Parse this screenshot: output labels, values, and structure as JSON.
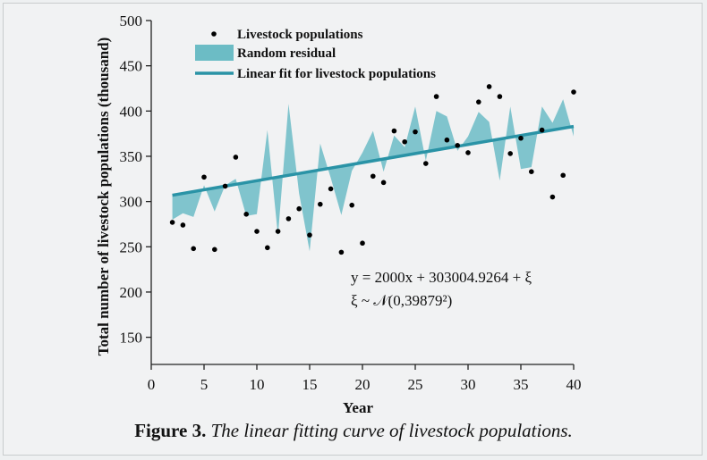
{
  "chart_data": {
    "type": "scatter",
    "xlabel": "Year",
    "ylabel": "Total number of livestock populations (thousand)",
    "xlim": [
      0,
      40
    ],
    "ylim": [
      120,
      500
    ],
    "xticks": [
      "0",
      "5",
      "10",
      "15",
      "20",
      "25",
      "30",
      "35",
      "40"
    ],
    "yticks": [
      "150",
      "200",
      "250",
      "300",
      "350",
      "400",
      "450",
      "500"
    ],
    "grid": false,
    "legend_position": "top-left",
    "colors": {
      "fit": "#2a93a6",
      "band": "#6cbcc5",
      "points": "#000000"
    },
    "legend": {
      "points": "Livestock populations",
      "band": "Random residual",
      "fit": "Linear fit for livestock populations"
    },
    "equation_line1": "y = 2000x + 303004.9264 + ξ",
    "equation_line2": "ξ ~ 𝒩(0,39879²)",
    "series": [
      {
        "name": "Livestock populations",
        "type": "scatter",
        "x": [
          2,
          3,
          4,
          5,
          6,
          7,
          8,
          9,
          10,
          11,
          12,
          13,
          14,
          15,
          16,
          17,
          18,
          19,
          20,
          21,
          22,
          23,
          24,
          25,
          26,
          27,
          28,
          29,
          30,
          31,
          32,
          33,
          34,
          35,
          36,
          37,
          38,
          39,
          40
        ],
        "y": [
          277,
          274,
          248,
          327,
          247,
          317,
          349,
          286,
          267,
          249,
          267,
          281,
          292,
          263,
          297,
          314,
          244,
          296,
          254,
          328,
          321,
          378,
          366,
          377,
          342,
          416,
          368,
          362,
          354,
          410,
          427,
          416,
          353,
          370,
          333,
          379,
          305,
          329,
          421
        ]
      },
      {
        "name": "Random residual",
        "type": "band",
        "x": [
          2,
          3,
          4,
          5,
          6,
          7,
          8,
          9,
          10,
          11,
          12,
          13,
          14,
          15,
          16,
          17,
          18,
          19,
          20,
          21,
          22,
          23,
          24,
          25,
          26,
          27,
          28,
          29,
          30,
          31,
          32,
          33,
          34,
          35,
          36,
          37,
          38,
          39,
          40
        ],
        "y": [
          280,
          287,
          283,
          318,
          289,
          318,
          325,
          284,
          286,
          379,
          262,
          408,
          309,
          245,
          364,
          326,
          285,
          334,
          354,
          378,
          333,
          373,
          360,
          405,
          345,
          400,
          394,
          356,
          372,
          399,
          388,
          323,
          405,
          336,
          338,
          405,
          387,
          413,
          372
        ]
      },
      {
        "name": "Linear fit for livestock populations",
        "type": "line",
        "x": [
          2,
          40
        ],
        "y": [
          307,
          383
        ]
      }
    ]
  },
  "caption": {
    "label": "Figure 3.",
    "text": "The linear fitting curve of livestock populations."
  }
}
